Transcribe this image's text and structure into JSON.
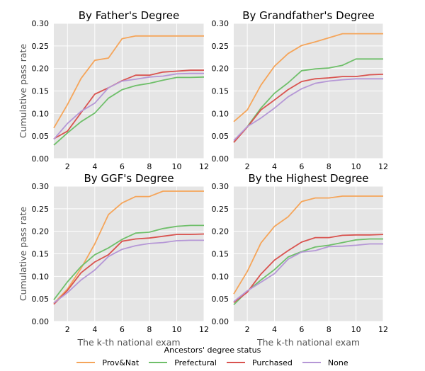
{
  "chart_data": {
    "type": "line",
    "x": [
      1,
      2,
      3,
      4,
      5,
      6,
      7,
      8,
      9,
      10,
      11,
      12
    ],
    "xlim": [
      1,
      12
    ],
    "xticks": [
      2,
      4,
      6,
      8,
      10,
      12
    ],
    "ylim": [
      0,
      0.3
    ],
    "yticks": [
      "0.00",
      "0.05",
      "0.10",
      "0.15",
      "0.20",
      "0.25",
      "0.30"
    ],
    "grid": true,
    "shared_xlabel": "The k-th national exam",
    "shared_ylabel": "Cumulative pass rate",
    "legend_title": "Ancestors' degree status",
    "legend_location": "bottom-center",
    "series_names": [
      "Prov&Nat",
      "Prefectural",
      "Purchased",
      "None"
    ],
    "colors": {
      "Prov&Nat": "#F5A55A",
      "Prefectural": "#6FBF6A",
      "Purchased": "#D9534F",
      "None": "#B597D6"
    },
    "panels": [
      {
        "title": "By Father's Degree",
        "series": [
          {
            "name": "Prov&Nat",
            "values": [
              0.068,
              0.12,
              0.178,
              0.218,
              0.223,
              0.266,
              0.272,
              0.272,
              0.272,
              0.272,
              0.272,
              0.272
            ]
          },
          {
            "name": "Prefectural",
            "values": [
              0.03,
              0.057,
              0.082,
              0.101,
              0.134,
              0.153,
              0.162,
              0.167,
              0.174,
              0.18,
              0.18,
              0.181
            ]
          },
          {
            "name": "Purchased",
            "values": [
              0.044,
              0.061,
              0.102,
              0.143,
              0.157,
              0.173,
              0.185,
              0.185,
              0.192,
              0.194,
              0.196,
              0.196
            ]
          },
          {
            "name": "None",
            "values": [
              0.043,
              0.078,
              0.105,
              0.123,
              0.157,
              0.172,
              0.176,
              0.181,
              0.183,
              0.188,
              0.189,
              0.189
            ]
          }
        ]
      },
      {
        "title": "By Grandfather's Degree",
        "series": [
          {
            "name": "Prov&Nat",
            "values": [
              0.082,
              0.108,
              0.163,
              0.205,
              0.233,
              0.251,
              0.259,
              0.268,
              0.277,
              0.277,
              0.277,
              0.277
            ]
          },
          {
            "name": "Prefectural",
            "values": [
              0.036,
              0.071,
              0.112,
              0.145,
              0.168,
              0.195,
              0.199,
              0.201,
              0.207,
              0.221,
              0.221,
              0.221
            ]
          },
          {
            "name": "Purchased",
            "values": [
              0.036,
              0.07,
              0.108,
              0.13,
              0.153,
              0.171,
              0.177,
              0.179,
              0.182,
              0.182,
              0.186,
              0.187
            ]
          },
          {
            "name": "None",
            "values": [
              0.04,
              0.071,
              0.09,
              0.112,
              0.137,
              0.155,
              0.167,
              0.172,
              0.175,
              0.177,
              0.177,
              0.177
            ]
          }
        ]
      },
      {
        "title": "By GGF's Degree",
        "series": [
          {
            "name": "Prov&Nat",
            "values": [
              0.04,
              0.072,
              0.118,
              0.172,
              0.237,
              0.263,
              0.277,
              0.277,
              0.289,
              0.289,
              0.289,
              0.289
            ]
          },
          {
            "name": "Prefectural",
            "values": [
              0.048,
              0.088,
              0.122,
              0.148,
              0.163,
              0.182,
              0.196,
              0.198,
              0.206,
              0.211,
              0.213,
              0.213
            ]
          },
          {
            "name": "Purchased",
            "values": [
              0.038,
              0.069,
              0.108,
              0.132,
              0.148,
              0.178,
              0.183,
              0.185,
              0.189,
              0.193,
              0.193,
              0.194
            ]
          },
          {
            "name": "None",
            "values": [
              0.041,
              0.064,
              0.092,
              0.114,
              0.144,
              0.16,
              0.168,
              0.173,
              0.175,
              0.179,
              0.18,
              0.18
            ]
          }
        ]
      },
      {
        "title": "By the Highest Degree",
        "series": [
          {
            "name": "Prov&Nat",
            "values": [
              0.061,
              0.111,
              0.174,
              0.211,
              0.232,
              0.266,
              0.274,
              0.274,
              0.278,
              0.278,
              0.278,
              0.278
            ]
          },
          {
            "name": "Prefectural",
            "values": [
              0.037,
              0.067,
              0.092,
              0.115,
              0.143,
              0.155,
              0.165,
              0.169,
              0.175,
              0.181,
              0.183,
              0.183
            ]
          },
          {
            "name": "Purchased",
            "values": [
              0.042,
              0.065,
              0.105,
              0.136,
              0.157,
              0.176,
              0.186,
              0.186,
              0.191,
              0.192,
              0.192,
              0.193
            ]
          },
          {
            "name": "None",
            "values": [
              0.044,
              0.068,
              0.087,
              0.106,
              0.138,
              0.154,
              0.157,
              0.166,
              0.167,
              0.169,
              0.172,
              0.172
            ]
          }
        ]
      }
    ]
  }
}
